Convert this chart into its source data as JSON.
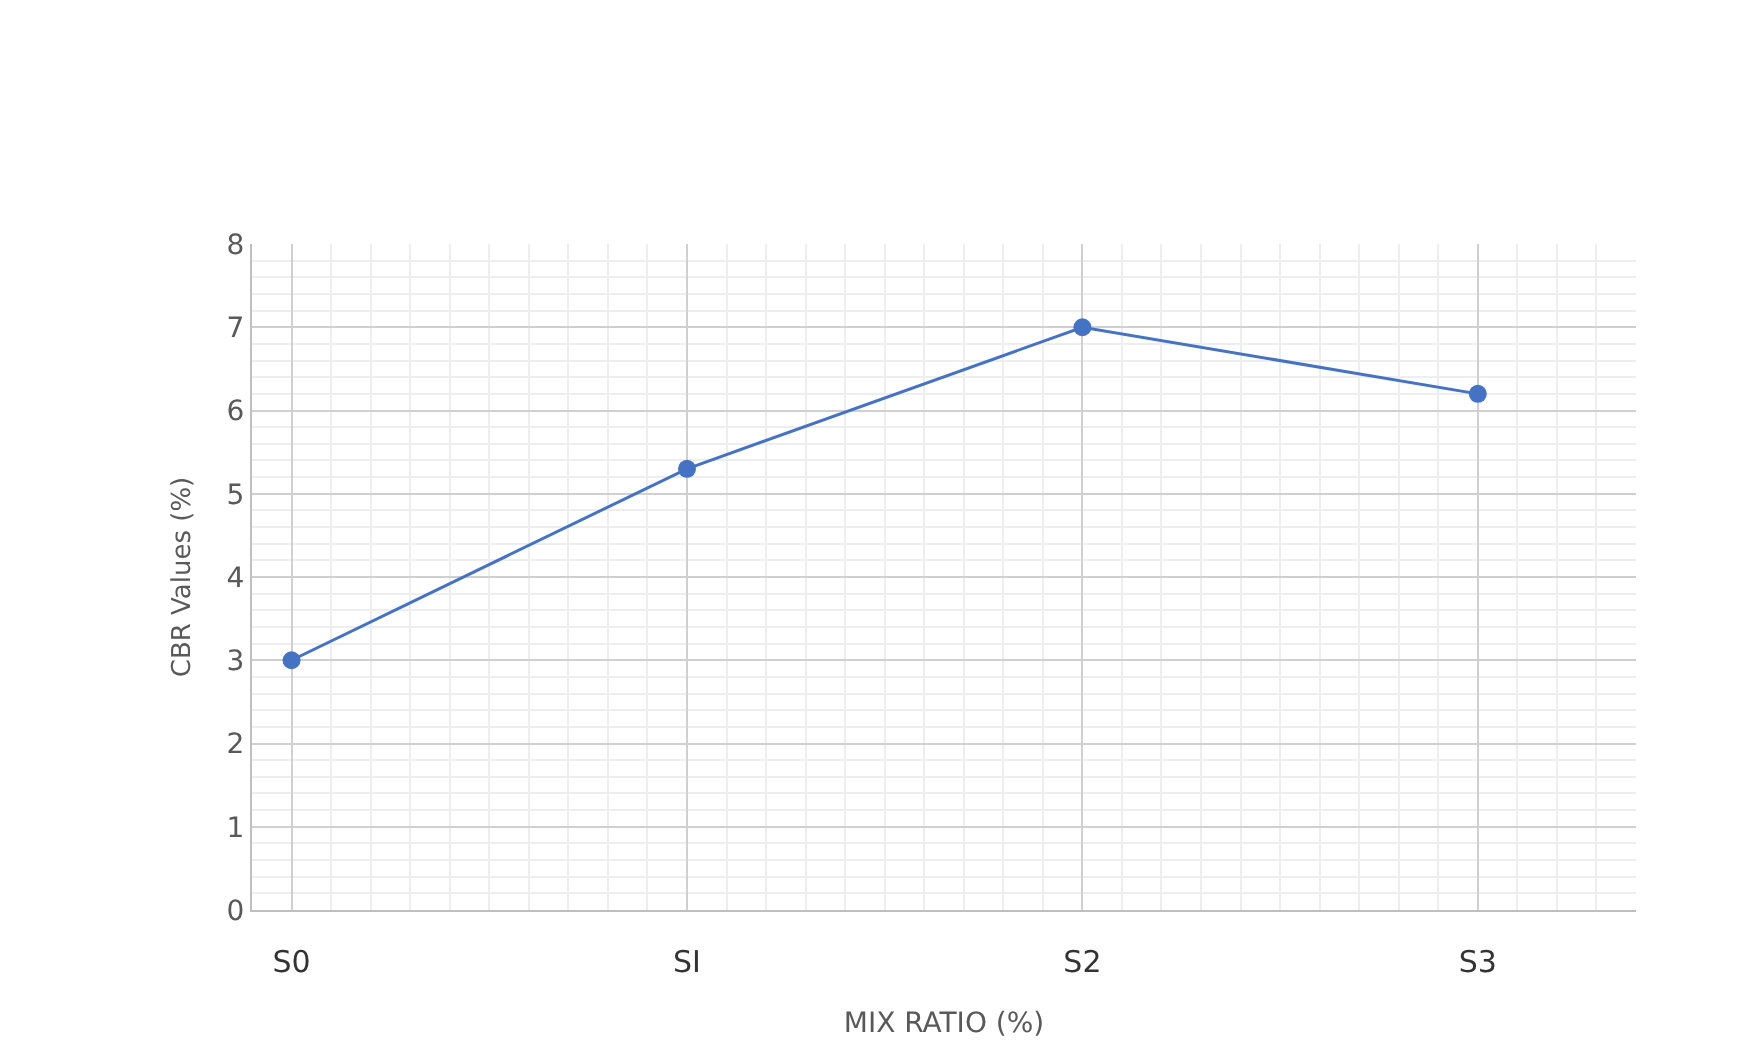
{
  "chart_data": {
    "type": "line",
    "xlabel": "MIX RATIO (%)",
    "ylabel": "CBR Values (%)",
    "categories": [
      "S0",
      "SI",
      "S2",
      "S3"
    ],
    "series": [
      {
        "color": "#4472c4",
        "values": [
          3.0,
          5.3,
          7.0,
          6.2
        ]
      }
    ],
    "ylim": [
      0,
      8
    ],
    "yticks": [
      0,
      1,
      2,
      3,
      4,
      5,
      6,
      7,
      8
    ],
    "grid": true,
    "marker": "circle",
    "line_style": "solid",
    "legend": false
  }
}
